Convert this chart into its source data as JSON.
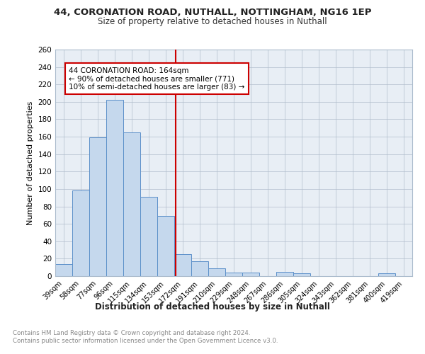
{
  "title1": "44, CORONATION ROAD, NUTHALL, NOTTINGHAM, NG16 1EP",
  "title2": "Size of property relative to detached houses in Nuthall",
  "xlabel": "Distribution of detached houses by size in Nuthall",
  "ylabel": "Number of detached properties",
  "categories": [
    "39sqm",
    "58sqm",
    "77sqm",
    "96sqm",
    "115sqm",
    "134sqm",
    "153sqm",
    "172sqm",
    "191sqm",
    "210sqm",
    "229sqm",
    "248sqm",
    "267sqm",
    "286sqm",
    "305sqm",
    "324sqm",
    "343sqm",
    "362sqm",
    "381sqm",
    "400sqm",
    "419sqm"
  ],
  "values": [
    14,
    98,
    159,
    202,
    165,
    91,
    69,
    25,
    17,
    9,
    4,
    4,
    0,
    5,
    3,
    0,
    0,
    0,
    0,
    3,
    0
  ],
  "bar_color": "#c5d8ed",
  "bar_edge_color": "#5b8fc9",
  "subject_line_color": "#cc0000",
  "annotation_line1": "44 CORONATION ROAD: 164sqm",
  "annotation_line2": "← 90% of detached houses are smaller (771)",
  "annotation_line3": "10% of semi-detached houses are larger (83) →",
  "annotation_box_color": "#ffffff",
  "annotation_box_edge": "#cc0000",
  "ylim": [
    0,
    260
  ],
  "yticks": [
    0,
    20,
    40,
    60,
    80,
    100,
    120,
    140,
    160,
    180,
    200,
    220,
    240,
    260
  ],
  "footer1": "Contains HM Land Registry data © Crown copyright and database right 2024.",
  "footer2": "Contains public sector information licensed under the Open Government Licence v3.0.",
  "plot_bg_color": "#e8eef5"
}
